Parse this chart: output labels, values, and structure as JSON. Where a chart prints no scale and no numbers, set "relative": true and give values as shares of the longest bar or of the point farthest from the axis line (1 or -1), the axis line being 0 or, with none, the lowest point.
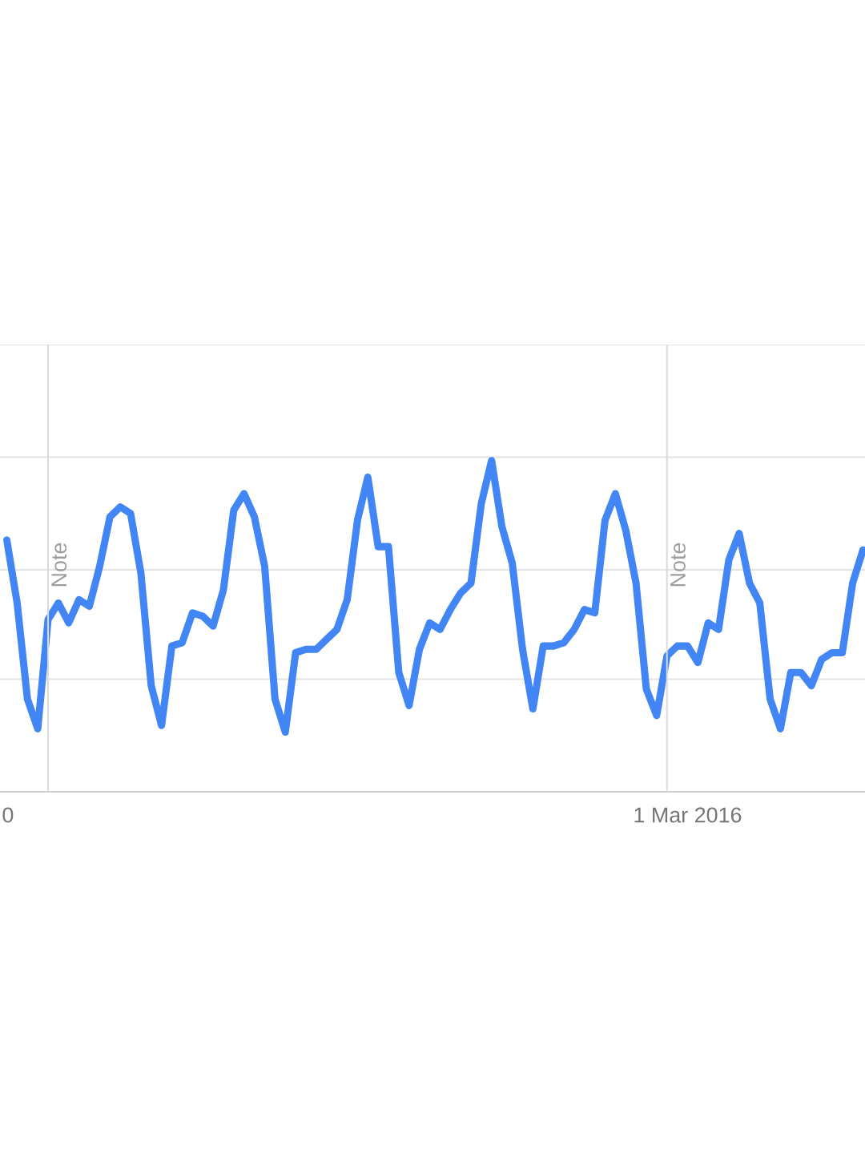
{
  "chart_data": {
    "type": "line",
    "relative": true,
    "categories": [
      null,
      null,
      null,
      null,
      null,
      null,
      null,
      null,
      null,
      null,
      null,
      null,
      null,
      null,
      null,
      null,
      null,
      null,
      null,
      null,
      null,
      null,
      null,
      null,
      null,
      null,
      null,
      null,
      null,
      null,
      null,
      null,
      null,
      null,
      null,
      null,
      null,
      null,
      null,
      null,
      null,
      null,
      null,
      null,
      null,
      null,
      null,
      null,
      null,
      null,
      null,
      null,
      null,
      null,
      null,
      null,
      null,
      null,
      null,
      null,
      null,
      null,
      null,
      null,
      null,
      null,
      null,
      null,
      null,
      null,
      null,
      null,
      null,
      null,
      null,
      null,
      null,
      null,
      null,
      null,
      null,
      null,
      null,
      null
    ],
    "values": [
      0.76,
      0.57,
      0.28,
      0.19,
      0.52,
      0.57,
      0.51,
      0.58,
      0.56,
      0.68,
      0.83,
      0.86,
      0.84,
      0.66,
      0.32,
      0.2,
      0.44,
      0.45,
      0.54,
      0.53,
      0.5,
      0.61,
      0.85,
      0.9,
      0.83,
      0.68,
      0.28,
      0.18,
      0.42,
      0.43,
      0.43,
      0.46,
      0.49,
      0.58,
      0.82,
      0.95,
      0.74,
      0.74,
      0.36,
      0.26,
      0.43,
      0.51,
      0.49,
      0.55,
      0.6,
      0.63,
      0.87,
      1,
      0.8,
      0.69,
      0.43,
      0.25,
      0.44,
      0.44,
      0.45,
      0.49,
      0.55,
      0.54,
      0.82,
      0.9,
      0.79,
      0.63,
      0.31,
      0.23,
      0.41,
      0.44,
      0.44,
      0.39,
      0.51,
      0.49,
      0.7,
      0.78,
      0.63,
      0.57,
      0.28,
      0.19,
      0.36,
      0.36,
      0.32,
      0.4,
      0.42,
      0.42,
      0.63,
      0.73
    ],
    "color": "#4285f4",
    "ref_lines": [
      {
        "axis": "y",
        "value": 0.34,
        "color": "#e3e3e3"
      },
      {
        "axis": "y",
        "value": 0.67,
        "color": "#e3e3e3"
      },
      {
        "axis": "y",
        "value": 1.01,
        "color": "#e3e3e3"
      },
      {
        "axis": "y",
        "value": 1.35,
        "color": "#e3e3e3"
      }
    ],
    "marker": "none",
    "line_style": "solid",
    "annotations": [
      "Note",
      "Note",
      "0",
      "1 Mar 2016"
    ]
  }
}
